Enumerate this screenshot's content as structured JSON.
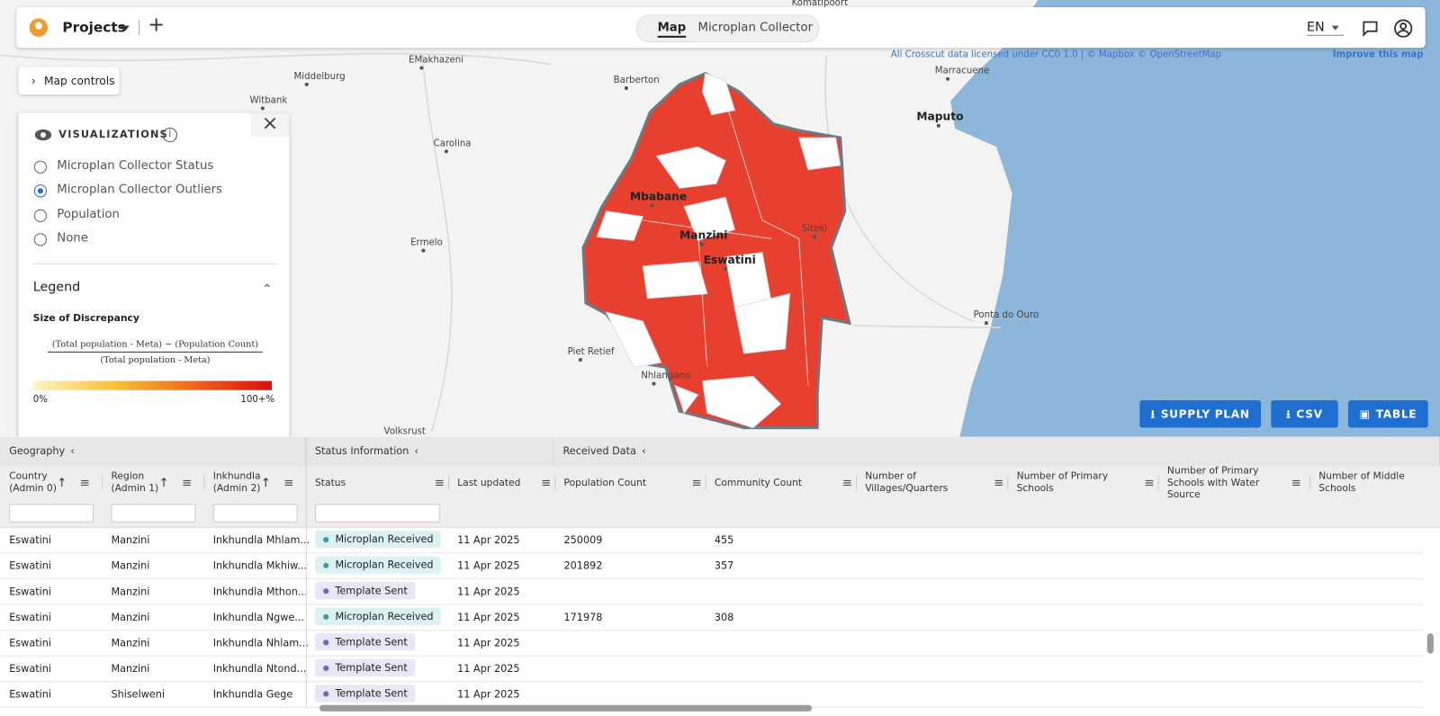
{
  "header": {
    "brand": "Projects",
    "tabs": [
      "Map",
      "Microplan Collector"
    ],
    "active_tab": 0,
    "lang": "EN"
  },
  "map": {
    "attribution": "All Crosscut data licensed under CC0 1.0 | © Mapbox © OpenStreetMap",
    "improve": "Improve this map",
    "controls": "Map controls",
    "places": [
      "Mbabane",
      "Manzini",
      "Eswatini",
      "Siteki",
      "Nhlangano",
      "Piet Retief",
      "Ermelo",
      "Carolina",
      "Barberton",
      "Middelburg",
      "Witbank",
      "EMakhazeni",
      "Maputo",
      "Marracuene",
      "Ponta do Ouro",
      "Volksrust",
      "Komatipoort"
    ]
  },
  "visualizations": {
    "title": "VISUALIZATIONS",
    "options": [
      "Microplan Collector Status",
      "Microplan Collector Outliers",
      "Population",
      "None"
    ],
    "selected": 1
  },
  "legend": {
    "title": "Legend",
    "subtitle": "Size of Discrepancy",
    "numerator": "(Total population - Meta) − (Population Count)",
    "denominator": "(Total population - Meta)",
    "min": "0%",
    "max": "100+%",
    "colors": [
      "#fff6c2",
      "#f7c23a",
      "#ee6a1c",
      "#d90f0f"
    ]
  },
  "buttons": [
    "SUPPLY PLAN",
    "CSV",
    "TABLE"
  ],
  "table": {
    "groups": [
      "Geography",
      "Status Information",
      "Received Data"
    ],
    "columns": [
      "Country (Admin 0)",
      "Region (Admin 1)",
      "Inkhundla (Admin 2)",
      "Status",
      "Last updated",
      "Population Count",
      "Community Count",
      "Number of Villages/Quarters",
      "Number of Primary Schools",
      "Number of Primary Schools with Water Source",
      "Number of Middle Schools"
    ],
    "rows": [
      {
        "country": "Eswatini",
        "region": "Manzini",
        "inkhundla": "Inkhundla Mhlam...",
        "status": {
          "label": "Microplan Received",
          "color": "#3c9c9c",
          "bg": "#dcf1f1"
        },
        "updated": "11 Apr 2025",
        "population": 250009,
        "community": 455
      },
      {
        "country": "Eswatini",
        "region": "Manzini",
        "inkhundla": "Inkhundla Mkhiw...",
        "status": {
          "label": "Microplan Received",
          "color": "#3c9c9c",
          "bg": "#dcf1f1"
        },
        "updated": "11 Apr 2025",
        "population": 201892,
        "community": 357
      },
      {
        "country": "Eswatini",
        "region": "Manzini",
        "inkhundla": "Inkhundla Mthon...",
        "status": {
          "label": "Template Sent",
          "color": "#6a6ab4",
          "bg": "#e7e7f5"
        },
        "updated": "11 Apr 2025"
      },
      {
        "country": "Eswatini",
        "region": "Manzini",
        "inkhundla": "Inkhundla Ngwe...",
        "status": {
          "label": "Microplan Received",
          "color": "#3c9c9c",
          "bg": "#dcf1f1"
        },
        "updated": "11 Apr 2025",
        "population": 171978,
        "community": 308
      },
      {
        "country": "Eswatini",
        "region": "Manzini",
        "inkhundla": "Inkhundla Nhlam...",
        "status": {
          "label": "Template Sent",
          "color": "#6a6ab4",
          "bg": "#e7e7f5"
        },
        "updated": "11 Apr 2025"
      },
      {
        "country": "Eswatini",
        "region": "Manzini",
        "inkhundla": "Inkhundla Ntond...",
        "status": {
          "label": "Template Sent",
          "color": "#6a6ab4",
          "bg": "#e7e7f5"
        },
        "updated": "11 Apr 2025"
      },
      {
        "country": "Eswatini",
        "region": "Shiselweni",
        "inkhundla": "Inkhundla Gege",
        "status": {
          "label": "Template Sent",
          "color": "#6a6ab4",
          "bg": "#e7e7f5"
        },
        "updated": "11 Apr 2025"
      }
    ]
  }
}
